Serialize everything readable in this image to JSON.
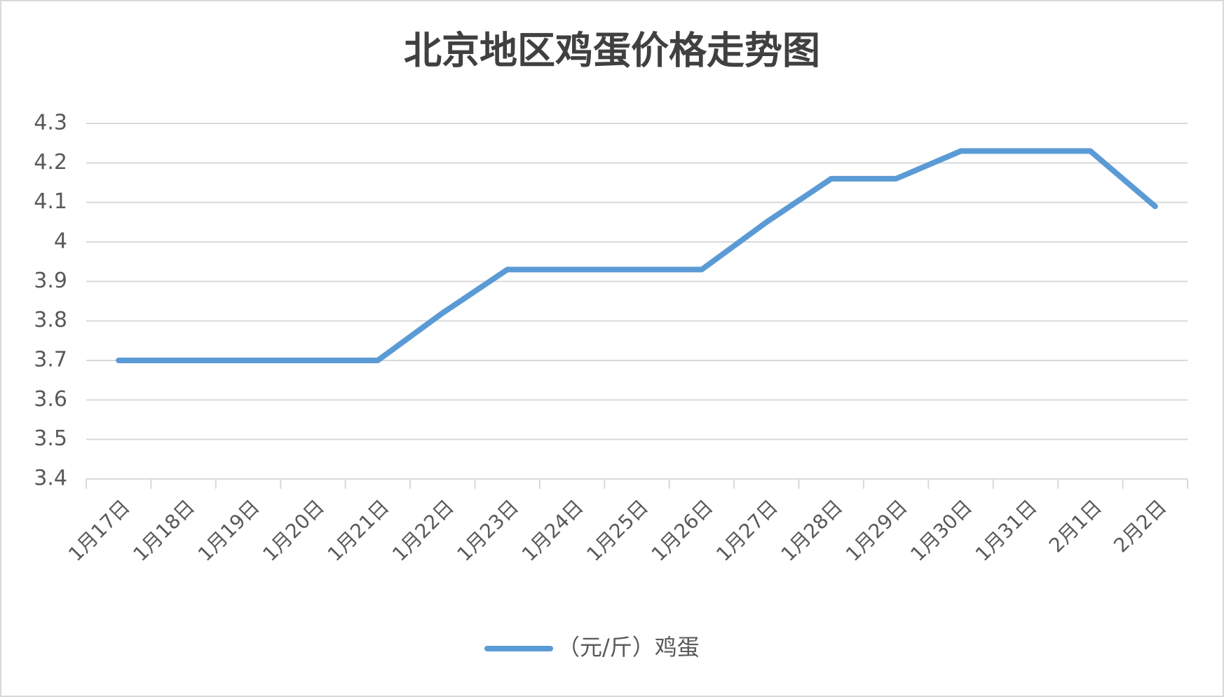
{
  "chart_data": {
    "type": "line",
    "title": "北京地区鸡蛋价格走势图",
    "categories": [
      "1月17日",
      "1月18日",
      "1月19日",
      "1月20日",
      "1月21日",
      "1月22日",
      "1月23日",
      "1月24日",
      "1月25日",
      "1月26日",
      "1月27日",
      "1月28日",
      "1月29日",
      "1月30日",
      "1月31日",
      "2月1日",
      "2月2日"
    ],
    "series": [
      {
        "name": "（元/斤）鸡蛋",
        "color": "#5b9bd5",
        "values": [
          3.7,
          3.7,
          3.7,
          3.7,
          3.7,
          3.82,
          3.93,
          3.93,
          3.93,
          3.93,
          4.05,
          4.16,
          4.16,
          4.23,
          4.23,
          4.23,
          4.09
        ]
      }
    ],
    "ylim": [
      3.4,
      4.3
    ],
    "yticks": [
      3.4,
      3.5,
      3.6,
      3.7,
      3.8,
      3.9,
      4,
      4.1,
      4.2,
      4.3
    ],
    "grid": true,
    "legend": "bottom"
  }
}
